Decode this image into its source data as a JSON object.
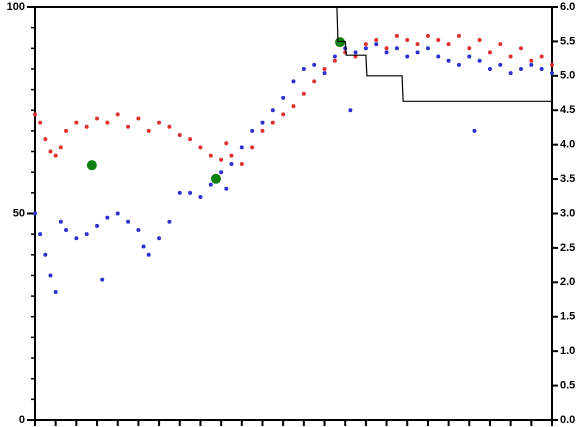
{
  "chart_data": {
    "type": "scatter",
    "xlim": [
      0,
      100
    ],
    "xticks": [
      0,
      4,
      8,
      12,
      16,
      20,
      24,
      28,
      32,
      36,
      40,
      44,
      48,
      52,
      56,
      60,
      64,
      68,
      72,
      76,
      80,
      84,
      88,
      92,
      96,
      100
    ],
    "ylim": [
      0,
      100
    ],
    "yticks": [
      0,
      50,
      100
    ],
    "yminor_step": 5,
    "y2lim": [
      0,
      6
    ],
    "y2ticks": [
      {
        "value": 0,
        "label": "0.0"
      },
      0.5,
      {
        "value": 1,
        "label": "1.0"
      },
      1.5,
      {
        "value": 2,
        "label": "2.0"
      },
      2.5,
      {
        "value": 3,
        "label": "3.0"
      },
      3.5,
      {
        "value": 4,
        "label": "4.0"
      },
      4.5,
      {
        "value": 5,
        "label": "5.0"
      },
      5.5,
      {
        "value": 6,
        "label": "6.0"
      }
    ],
    "series": [
      {
        "color": "#e03030",
        "style": "points",
        "size": 2,
        "x": [
          0,
          1,
          2,
          3,
          4,
          5,
          6,
          8,
          10,
          12,
          14,
          16,
          18,
          20,
          22,
          24,
          26,
          28,
          30,
          32,
          34,
          36,
          37,
          38,
          40,
          42,
          44,
          46,
          48,
          50,
          52,
          54,
          56,
          58,
          60,
          62,
          64,
          66,
          68,
          70,
          72,
          74,
          76,
          78,
          80,
          82,
          84,
          86,
          88,
          90,
          92,
          94,
          96,
          98,
          100
        ],
        "values": [
          74,
          72,
          68,
          65,
          64,
          66,
          70,
          72,
          71,
          73,
          72,
          74,
          71,
          73,
          70,
          72,
          71,
          69,
          68,
          66,
          64,
          63,
          67,
          64,
          62,
          66,
          70,
          72,
          74,
          76,
          79,
          82,
          85,
          87,
          89,
          88,
          91,
          92,
          90,
          93,
          92,
          91,
          93,
          92,
          91,
          93,
          90,
          92,
          89,
          91,
          88,
          90,
          87,
          88,
          86
        ]
      },
      {
        "color": "#3030d0",
        "style": "points",
        "size": 2,
        "x": [
          0,
          1,
          2,
          3,
          4,
          5,
          6,
          8,
          10,
          12,
          13,
          14,
          16,
          18,
          20,
          21,
          22,
          24,
          26,
          28,
          30,
          32,
          34,
          36,
          37,
          38,
          40,
          42,
          44,
          46,
          48,
          50,
          52,
          54,
          56,
          58,
          60,
          61,
          62,
          64,
          66,
          68,
          70,
          72,
          74,
          76,
          78,
          80,
          82,
          84,
          85,
          86,
          88,
          90,
          92,
          94,
          96,
          98,
          100
        ],
        "values": [
          50,
          45,
          40,
          35,
          31,
          48,
          46,
          44,
          45,
          47,
          34,
          49,
          50,
          48,
          46,
          42,
          40,
          44,
          48,
          55,
          55,
          54,
          57,
          60,
          56,
          62,
          66,
          70,
          72,
          75,
          78,
          82,
          85,
          86,
          84,
          88,
          90,
          75,
          89,
          90,
          91,
          89,
          90,
          88,
          89,
          90,
          88,
          87,
          86,
          88,
          70,
          87,
          85,
          86,
          84,
          85,
          86,
          85,
          84
        ]
      },
      {
        "color": "#108010",
        "style": "points",
        "size": 5,
        "x": [
          11,
          35,
          59
        ],
        "values": [
          61.7,
          58.4,
          91.5
        ]
      },
      {
        "color": "#000000",
        "style": "line",
        "axis": "y2",
        "x": [
          0,
          58.4,
          58.6,
          60,
          60.2,
          64,
          64.2,
          71,
          71.2,
          100
        ],
        "values": [
          6,
          6,
          5.5,
          5.5,
          5.3,
          5.3,
          5.0,
          5.0,
          4.63,
          4.63
        ]
      }
    ]
  }
}
